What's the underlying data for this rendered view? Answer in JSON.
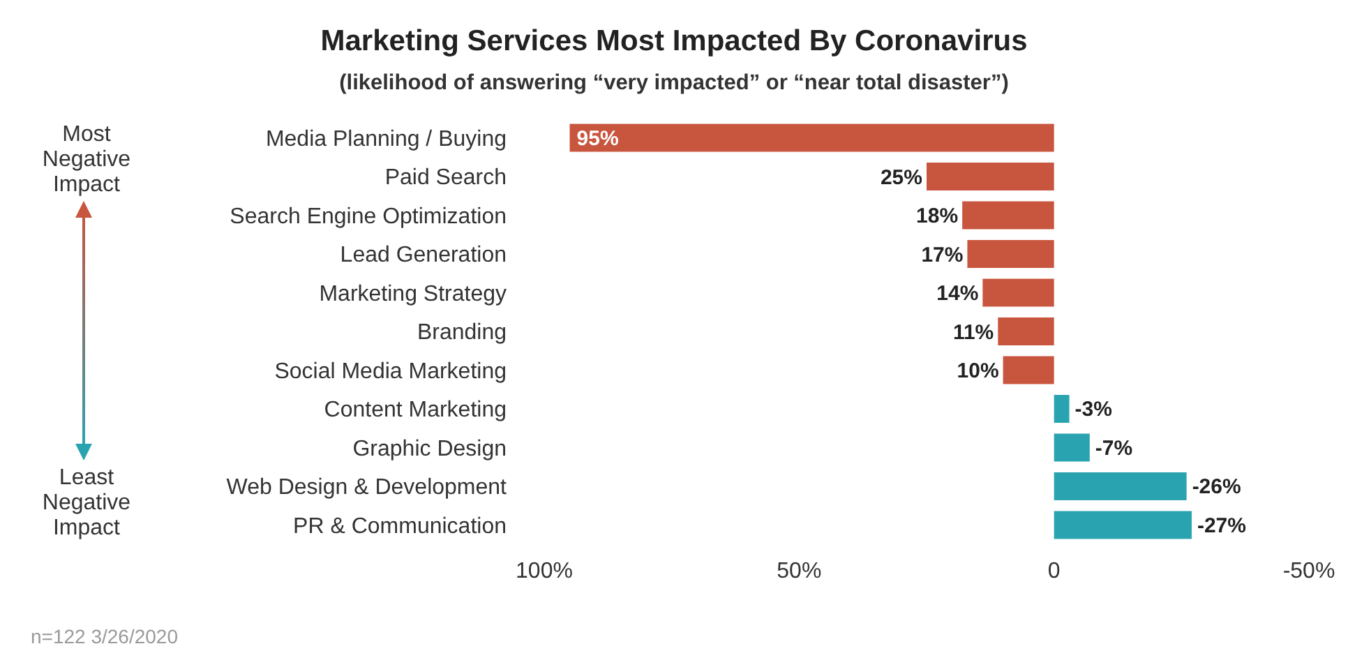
{
  "chart_data": {
    "type": "bar",
    "orientation": "horizontal",
    "title": "Marketing Services Most Impacted By Coronavirus",
    "subtitle": "(likelihood of answering “very impacted” or “near total disaster”)",
    "categories": [
      "Media Planning / Buying",
      "Paid Search",
      "Search Engine Optimization",
      "Lead Generation",
      "Marketing Strategy",
      "Branding",
      "Social Media Marketing",
      "Content Marketing",
      "Graphic Design",
      "Web Design & Development",
      "PR & Communication"
    ],
    "values": [
      95,
      25,
      18,
      17,
      14,
      11,
      10,
      -3,
      -7,
      -26,
      -27
    ],
    "value_labels": [
      "95%",
      "25%",
      "18%",
      "17%",
      "14%",
      "11%",
      "10%",
      "-3%",
      "-7%",
      "-26%",
      "-27%"
    ],
    "colors": [
      "#c8553d",
      "#c8553d",
      "#c8553d",
      "#c8553d",
      "#c8553d",
      "#c8553d",
      "#c8553d",
      "#2aa3b1",
      "#2aa3b1",
      "#2aa3b1",
      "#2aa3b1"
    ],
    "xlim": [
      100,
      -50
    ],
    "xticks": [
      {
        "value": 100,
        "label": "100%"
      },
      {
        "value": 50,
        "label": "50%"
      },
      0,
      {
        "value": -50,
        "label": "-50%"
      }
    ],
    "annotations": [
      "Most Negative Impact",
      "Least Negative Impact",
      "n=122 3/26/2020"
    ]
  }
}
